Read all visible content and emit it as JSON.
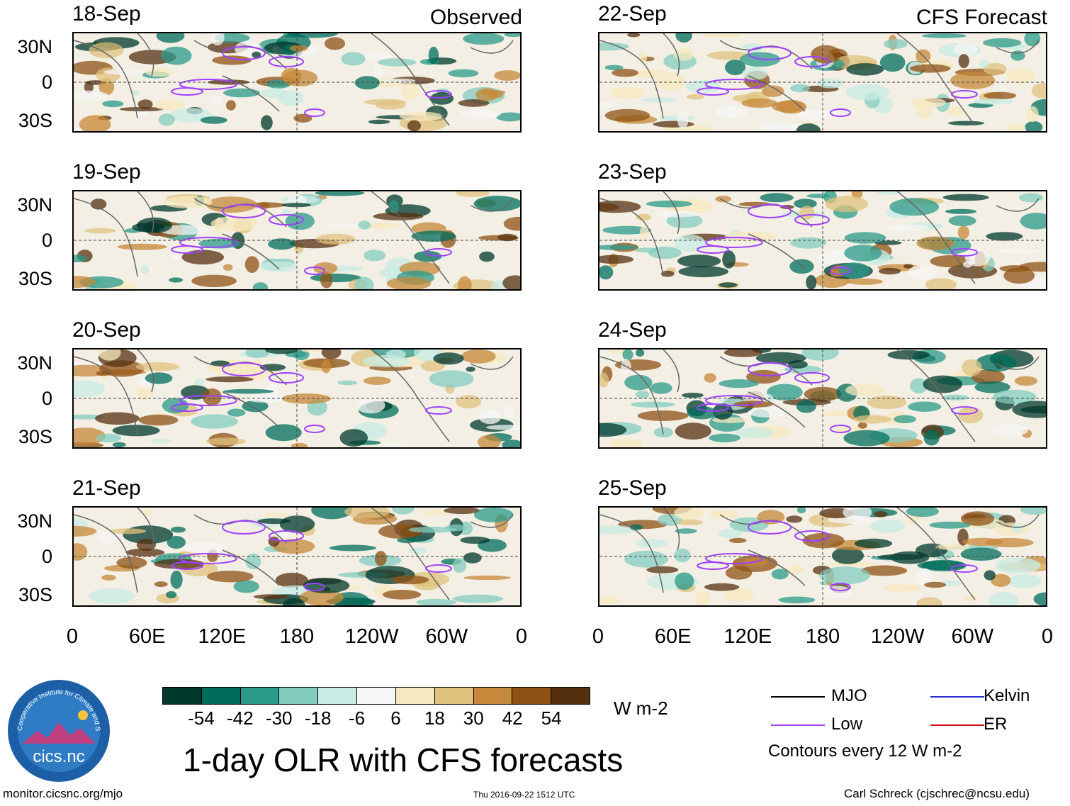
{
  "left_header": "Observed",
  "right_header": "CFS Forecast",
  "panels_left": [
    {
      "date": "18-Sep"
    },
    {
      "date": "19-Sep"
    },
    {
      "date": "20-Sep"
    },
    {
      "date": "21-Sep"
    }
  ],
  "panels_right": [
    {
      "date": "22-Sep"
    },
    {
      "date": "23-Sep"
    },
    {
      "date": "24-Sep"
    },
    {
      "date": "25-Sep"
    }
  ],
  "lat_labels": [
    "30N",
    "0",
    "30S"
  ],
  "lon_labels": [
    "0",
    "60E",
    "120E",
    "180",
    "120W",
    "60W",
    "0"
  ],
  "colorbar": {
    "colors": [
      "#00382c",
      "#006d5c",
      "#2b9a8a",
      "#84ccc0",
      "#c8ebe4",
      "#f6f6f6",
      "#f7e8c0",
      "#e0c27e",
      "#c6883a",
      "#8f5214",
      "#553010"
    ],
    "ticks": [
      "-54",
      "-42",
      "-30",
      "-18",
      "-6",
      "6",
      "18",
      "30",
      "42",
      "54"
    ],
    "units": "W m-2"
  },
  "title": "1-day OLR with CFS forecasts",
  "legend": {
    "items": [
      {
        "label": "MJO",
        "color": "#000000"
      },
      {
        "label": "Kelvin",
        "color": "#2c2cd8"
      },
      {
        "label": "Low",
        "color": "#a040ff"
      },
      {
        "label": "ER",
        "color": "#d01010"
      }
    ],
    "note": "Contours every 12 W m-2"
  },
  "logo": {
    "text": "cics.nc",
    "ring_text": "Cooperative Institute for Climate and Satellites"
  },
  "footer": {
    "left": "monitor.cicsnc.org/mjo",
    "center": "Thu 2016-09-22 1512 UTC",
    "right": "Carl Schreck (cjschrec@ncsu.edu)"
  },
  "chart_data": {
    "type": "heatmap",
    "variable": "OLR anomaly",
    "units": "W m-2",
    "x_axis": {
      "range": [
        0,
        360
      ],
      "ticks": [
        "0",
        "60E",
        "120E",
        "180",
        "120W",
        "60W",
        "0"
      ]
    },
    "y_axis": {
      "range": [
        -40,
        40
      ],
      "ticks": [
        "30N",
        "0",
        "30S"
      ]
    },
    "observed_dates": [
      "18-Sep",
      "19-Sep",
      "20-Sep",
      "21-Sep"
    ],
    "forecast_dates": [
      "22-Sep",
      "23-Sep",
      "24-Sep",
      "25-Sep"
    ],
    "contour_interval": 12
  }
}
